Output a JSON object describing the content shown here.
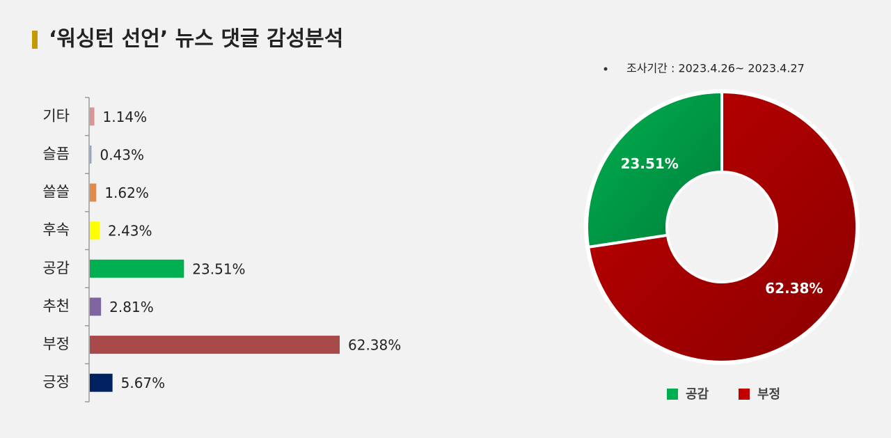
{
  "title": "‘워싱턴 선언’ 뉴스 댓글 감성분석",
  "note": "조사기간 : 2023.4.26~ 2023.4.27",
  "chart_data": [
    {
      "type": "hbar",
      "categories": [
        "기타",
        "슬픔",
        "쓸쓸",
        "후속",
        "공감",
        "추천",
        "부정",
        "긍정"
      ],
      "values": [
        1.14,
        0.43,
        1.62,
        2.43,
        23.51,
        2.81,
        62.38,
        5.67
      ],
      "value_labels": [
        "1.14%",
        "0.43%",
        "1.62%",
        "2.43%",
        "23.51%",
        "2.81%",
        "62.38%",
        "5.67%"
      ],
      "colors": [
        "#d99694",
        "#8ea9c8",
        "#e08b4a",
        "#ffff00",
        "#00b050",
        "#8064a2",
        "#a94a4a",
        "#002060"
      ]
    },
    {
      "type": "donut",
      "categories": [
        "공감",
        "부정"
      ],
      "values": [
        23.51,
        62.38
      ],
      "value_labels": [
        "23.51%",
        "62.38%"
      ],
      "colors": [
        "#00b050",
        "#c00000"
      ],
      "legend": "bottom"
    }
  ]
}
